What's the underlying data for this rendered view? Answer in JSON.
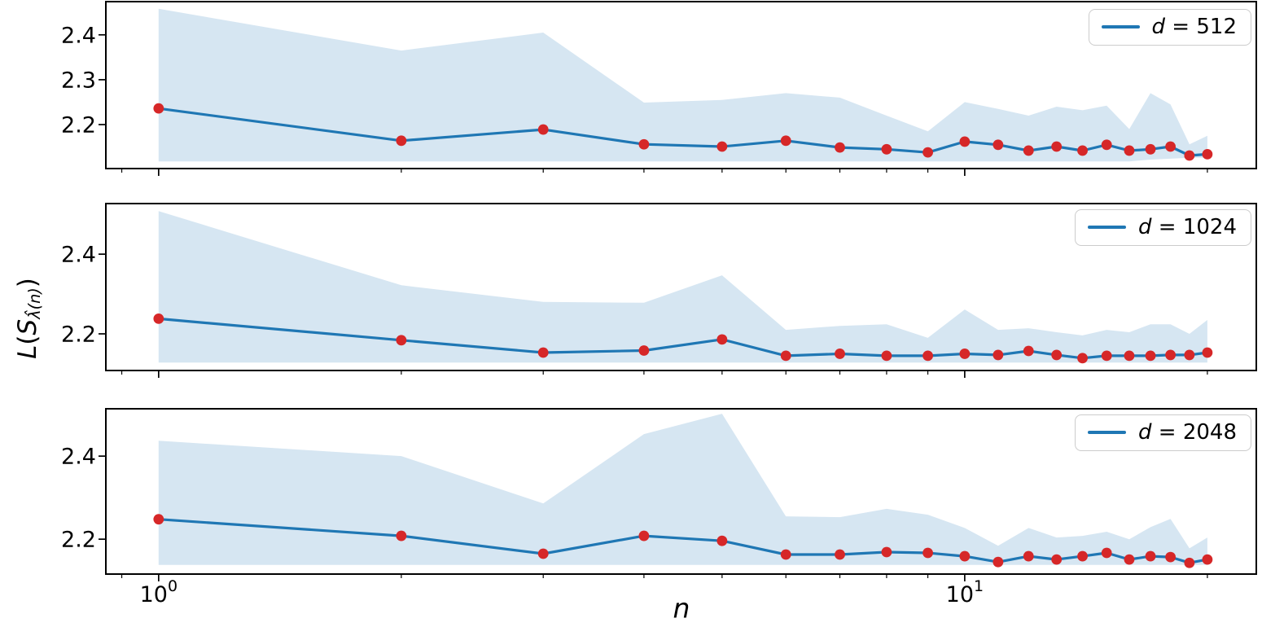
{
  "colors": {
    "line": "#1f77b4",
    "band": "#d6e6f2",
    "marker": "#d62728",
    "axis": "#000000",
    "text": "#000000",
    "legend_border": "#cccccc",
    "background": "#ffffff"
  },
  "ylabel_parts": {
    "l": "L",
    "open": "(",
    "s": "S",
    "sub": "λ̂(n)",
    "close": ")"
  },
  "chart_data": {
    "type": "line",
    "x_scale": "log",
    "xlabel": "n",
    "ylabel": "L(S_λ̂(n))",
    "x": [
      1,
      2,
      3,
      4,
      5,
      6,
      7,
      8,
      9,
      10,
      11,
      12,
      13,
      14,
      15,
      16,
      17,
      18,
      19,
      20
    ],
    "xlim": [
      0.86,
      23
    ],
    "x_major_ticks": [
      {
        "value": 1,
        "label_base": "10",
        "label_exp": "0"
      },
      {
        "value": 10,
        "label_base": "10",
        "label_exp": "1"
      }
    ],
    "x_minor_ticks": [
      0.9,
      2,
      3,
      4,
      5,
      6,
      7,
      8,
      9,
      20
    ],
    "grid": false,
    "legend_position": "upper right",
    "subplots": [
      {
        "legend": {
          "var": "d",
          "sep": " = ",
          "value": "512"
        },
        "ylim": [
          2.102,
          2.474
        ],
        "yticks": [
          {
            "value": 2.2,
            "label": "2.2"
          },
          {
            "value": 2.3,
            "label": "2.3"
          },
          {
            "value": 2.4,
            "label": "2.4"
          }
        ],
        "mean": [
          2.236,
          2.164,
          2.189,
          2.156,
          2.151,
          2.164,
          2.149,
          2.145,
          2.138,
          2.162,
          2.155,
          2.142,
          2.151,
          2.142,
          2.155,
          2.142,
          2.145,
          2.151,
          2.131,
          2.134
        ],
        "band_upper": [
          2.458,
          2.365,
          2.405,
          2.249,
          2.255,
          2.27,
          2.26,
          2.22,
          2.185,
          2.25,
          2.235,
          2.22,
          2.24,
          2.232,
          2.242,
          2.19,
          2.27,
          2.245,
          2.156,
          2.175
        ],
        "band_lower": [
          2.118,
          2.118,
          2.118,
          2.118,
          2.118,
          2.118,
          2.118,
          2.118,
          2.118,
          2.118,
          2.118,
          2.118,
          2.118,
          2.118,
          2.118,
          2.118,
          2.122,
          2.124,
          2.126,
          2.126
        ]
      },
      {
        "legend": {
          "var": "d",
          "sep": " = ",
          "value": "1024"
        },
        "ylim": [
          2.108,
          2.527
        ],
        "yticks": [
          {
            "value": 2.2,
            "label": "2.2"
          },
          {
            "value": 2.4,
            "label": "2.4"
          }
        ],
        "mean": [
          2.238,
          2.184,
          2.153,
          2.158,
          2.186,
          2.145,
          2.15,
          2.145,
          2.145,
          2.15,
          2.147,
          2.157,
          2.147,
          2.139,
          2.145,
          2.145,
          2.145,
          2.147,
          2.147,
          2.153
        ],
        "band_upper": [
          2.508,
          2.322,
          2.28,
          2.278,
          2.347,
          2.21,
          2.22,
          2.224,
          2.19,
          2.261,
          2.21,
          2.214,
          2.204,
          2.196,
          2.21,
          2.204,
          2.224,
          2.224,
          2.2,
          2.235
        ],
        "band_lower": [
          2.128,
          2.128,
          2.128,
          2.128,
          2.128,
          2.128,
          2.128,
          2.128,
          2.128,
          2.128,
          2.128,
          2.128,
          2.128,
          2.128,
          2.128,
          2.128,
          2.128,
          2.128,
          2.128,
          2.128
        ]
      },
      {
        "legend": {
          "var": "d",
          "sep": " = ",
          "value": "2048"
        },
        "ylim": [
          2.116,
          2.514
        ],
        "yticks": [
          {
            "value": 2.2,
            "label": "2.2"
          },
          {
            "value": 2.4,
            "label": "2.4"
          }
        ],
        "mean": [
          2.248,
          2.208,
          2.165,
          2.208,
          2.196,
          2.163,
          2.163,
          2.169,
          2.167,
          2.159,
          2.145,
          2.159,
          2.151,
          2.159,
          2.167,
          2.151,
          2.159,
          2.157,
          2.143,
          2.151
        ],
        "band_upper": [
          2.437,
          2.4,
          2.286,
          2.453,
          2.502,
          2.255,
          2.253,
          2.273,
          2.259,
          2.227,
          2.184,
          2.227,
          2.204,
          2.208,
          2.218,
          2.2,
          2.229,
          2.249,
          2.178,
          2.204
        ],
        "band_lower": [
          2.138,
          2.138,
          2.138,
          2.138,
          2.138,
          2.138,
          2.138,
          2.138,
          2.138,
          2.138,
          2.138,
          2.138,
          2.138,
          2.138,
          2.138,
          2.138,
          2.138,
          2.138,
          2.138,
          2.138
        ]
      }
    ]
  }
}
